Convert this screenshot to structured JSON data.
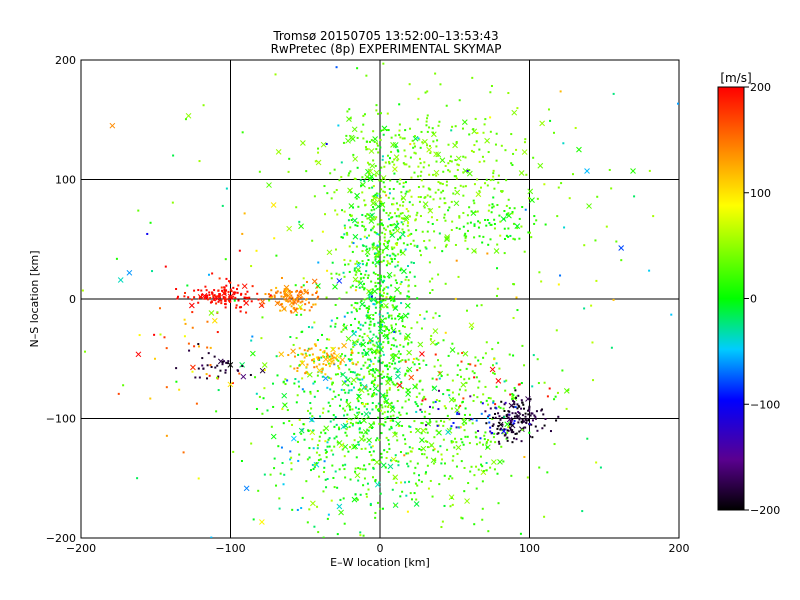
{
  "chart_data": {
    "type": "scatter",
    "title": "Tromsø 20150705 13:52:00–13:53:43",
    "subtitle": "RwPretec (8p) EXPERIMENTAL SKYMAP",
    "xlabel": "E–W location [km]",
    "ylabel": "N–S location [km]",
    "xlim": [
      -200,
      200
    ],
    "ylim": [
      -200,
      200
    ],
    "xticks": [
      -200,
      -100,
      0,
      100,
      200
    ],
    "yticks": [
      -200,
      -100,
      0,
      100,
      200
    ],
    "grid_lines": [
      -100,
      0,
      100
    ],
    "colorbar": {
      "label": "[m/s]",
      "range": [
        -200,
        200
      ],
      "ticks": [
        200,
        100,
        0,
        -100,
        -200
      ],
      "colors": [
        "#000000",
        "#5a0090",
        "#0000ff",
        "#00ccff",
        "#00ff00",
        "#ffff00",
        "#ff8000",
        "#ff0000"
      ]
    },
    "clusters": [
      {
        "x": 0,
        "y": 10,
        "sx": 12,
        "sy": 60,
        "v": 10,
        "sv": 25,
        "n": 650
      },
      {
        "x": 35,
        "y": 95,
        "sx": 40,
        "sy": 35,
        "v": 40,
        "sv": 10,
        "n": 450
      },
      {
        "x": 75,
        "y": 60,
        "sx": 18,
        "sy": 12,
        "v": 10,
        "sv": 10,
        "n": 60
      },
      {
        "x": -20,
        "y": -100,
        "sx": 30,
        "sy": 45,
        "v": 10,
        "sv": 30,
        "n": 550
      },
      {
        "x": 45,
        "y": -100,
        "sx": 30,
        "sy": 40,
        "v": 30,
        "sv": 15,
        "n": 350
      },
      {
        "x": -60,
        "y": 0,
        "sx": 10,
        "sy": 6,
        "v": 140,
        "sv": 12,
        "n": 110
      },
      {
        "x": -105,
        "y": 3,
        "sx": 12,
        "sy": 5,
        "v": 195,
        "sv": 8,
        "n": 130
      },
      {
        "x": -40,
        "y": -50,
        "sx": 12,
        "sy": 8,
        "v": 120,
        "sv": 15,
        "n": 80
      },
      {
        "x": 92,
        "y": -100,
        "sx": 10,
        "sy": 8,
        "v": -185,
        "sv": 10,
        "n": 140
      },
      {
        "x": -108,
        "y": -55,
        "sx": 10,
        "sy": 8,
        "v": -185,
        "sv": 10,
        "n": 35
      },
      {
        "x": 60,
        "y": -70,
        "sx": 30,
        "sy": 15,
        "v": 190,
        "sv": 15,
        "n": 25
      },
      {
        "x": -130,
        "y": -40,
        "sx": 25,
        "sy": 30,
        "v": 150,
        "sv": 40,
        "n": 40
      },
      {
        "x": 60,
        "y": -100,
        "sx": 20,
        "sy": 10,
        "v": -100,
        "sv": 30,
        "n": 40
      },
      {
        "x": 0,
        "y": 0,
        "sx": 110,
        "sy": 100,
        "v": 20,
        "sv": 60,
        "n": 220
      }
    ]
  }
}
